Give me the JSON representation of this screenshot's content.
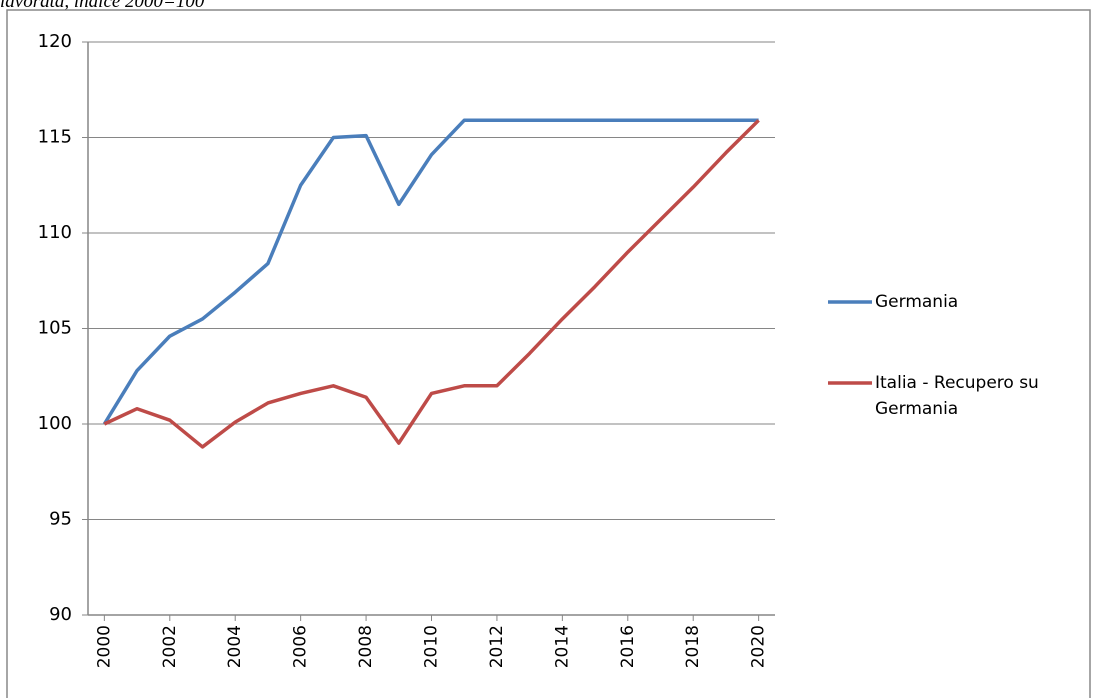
{
  "chart_data": {
    "type": "line",
    "title": "lavorata, indice 2000=100",
    "x": [
      2000,
      2001,
      2002,
      2003,
      2004,
      2005,
      2006,
      2007,
      2008,
      2009,
      2010,
      2011,
      2012,
      2013,
      2014,
      2015,
      2016,
      2017,
      2018,
      2019,
      2020
    ],
    "series": [
      {
        "name": "Germania",
        "color": "#4a7ebb",
        "values": [
          100,
          102.8,
          104.6,
          105.5,
          106.9,
          108.4,
          112.5,
          115.0,
          115.1,
          111.5,
          114.1,
          115.9,
          115.9,
          115.9,
          115.9,
          115.9,
          115.9,
          115.9,
          115.9,
          115.9,
          115.9
        ]
      },
      {
        "name": "Italia - Recupero su Germania",
        "color": "#be4b48",
        "values": [
          100,
          100.8,
          100.2,
          98.8,
          100.1,
          101.1,
          101.6,
          102.0,
          101.4,
          99.0,
          101.6,
          102.0,
          102.0,
          103.7,
          105.5,
          107.2,
          109.0,
          110.7,
          112.4,
          114.2,
          115.9
        ]
      }
    ],
    "xlim": [
      1999.5,
      2020.5
    ],
    "xticks": [
      2000,
      2002,
      2004,
      2006,
      2008,
      2010,
      2012,
      2014,
      2016,
      2018,
      2020
    ],
    "ylim": [
      90,
      120
    ],
    "yticks": [
      90,
      95,
      100,
      105,
      110,
      115,
      120
    ],
    "grid": true,
    "legend": "right"
  }
}
